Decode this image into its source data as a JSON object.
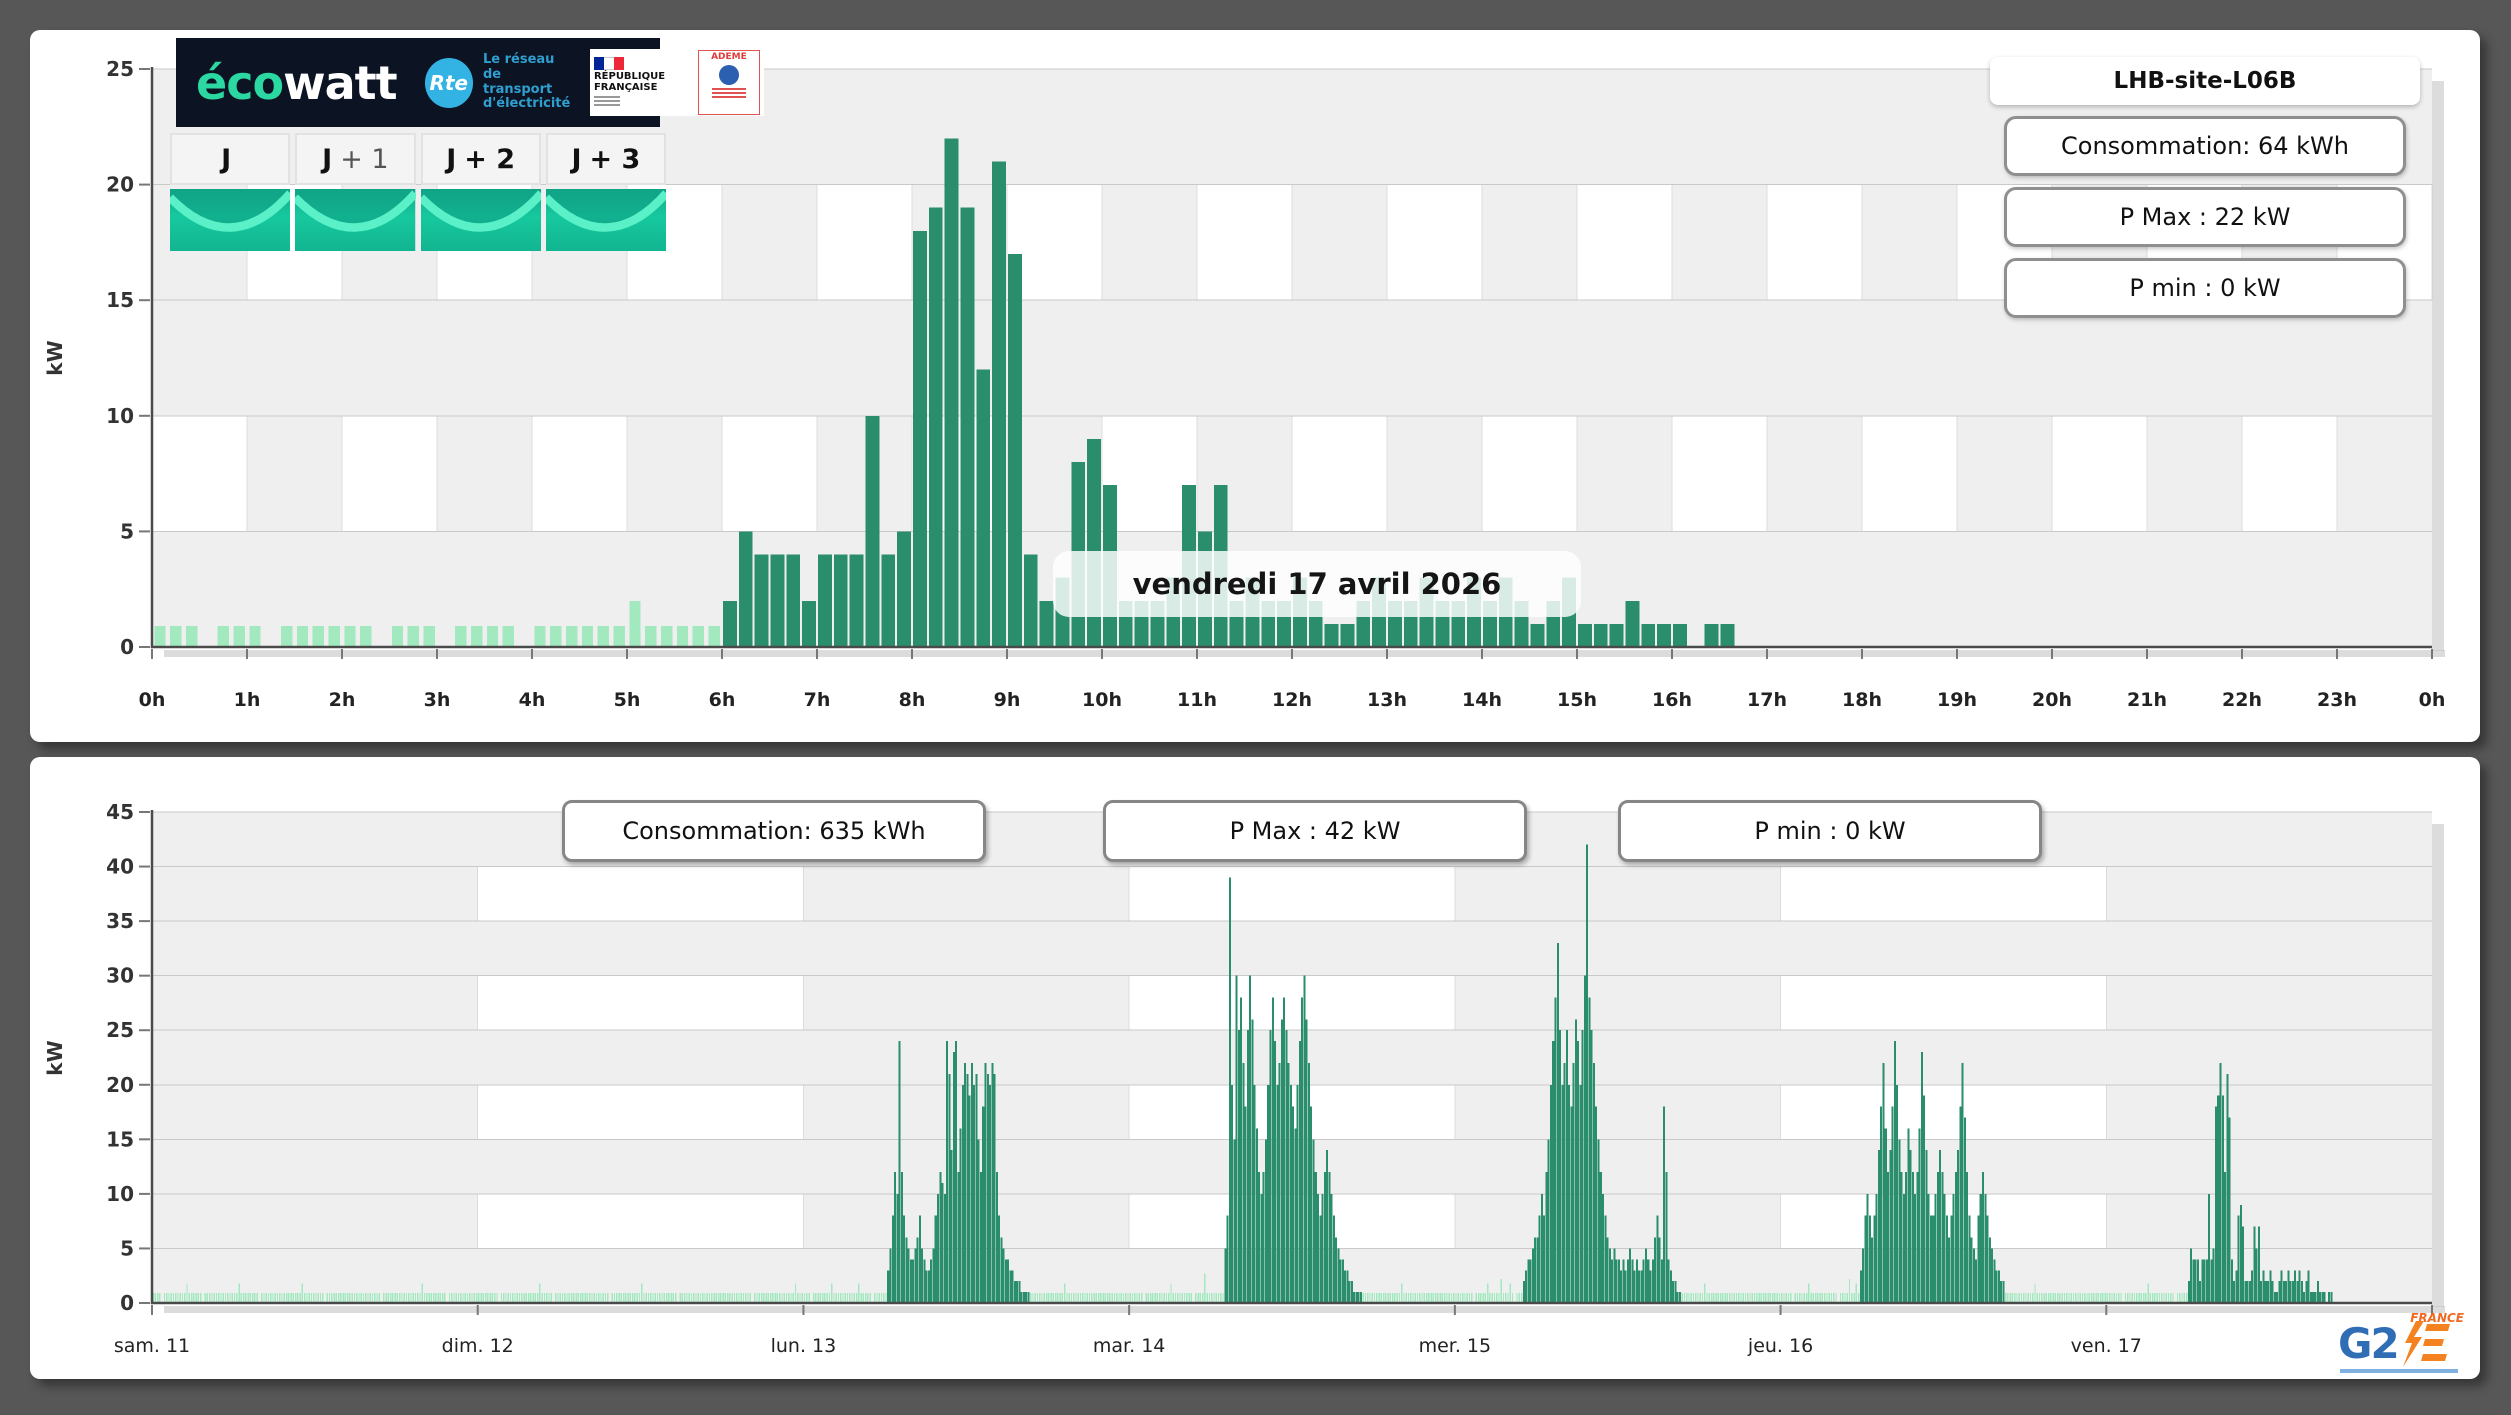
{
  "site_panel": {
    "title": "LHB-site-L06B",
    "stats": [
      "Consommation: 64 kWh",
      "P Max :  22 kW",
      "P min : 0 kW"
    ]
  },
  "bottom_stats": [
    "Consommation: 635 kWh",
    "P Max :  42 kW",
    "P min : 0 kW"
  ],
  "day_overlay": "vendredi 17 avril 2026",
  "banner": {
    "brand_eco": "éco",
    "brand_watt": "watt",
    "rte": "Rte",
    "rte_tagline_1": "Le réseau",
    "rte_tagline_2": "de transport",
    "rte_tagline_3": "d'électricité",
    "republique_1": "RÉPUBLIQUE",
    "republique_2": "FRANÇAISE",
    "ademe": "ADEME"
  },
  "tabs": [
    {
      "j": "J",
      "rest": ""
    },
    {
      "j": "J",
      "rest": "+ 1"
    },
    {
      "j": "J",
      "rest": "+ 2"
    },
    {
      "j": "J",
      "rest": "+ 3"
    }
  ],
  "footer_logo": {
    "g2": "G2",
    "e": "E",
    "france": "FRANCE"
  },
  "colors": {
    "bar_light": "#a3e9c0",
    "bar_dark": "#2a8e6c",
    "cell_gray": "#efefef",
    "cell_white": "#ffffff",
    "cell_border": "#dcdcdc",
    "grid": "#c9c9c9",
    "axis": "#4a4a4a",
    "tick": "#777777",
    "shadow": "#bfbfbf",
    "accent_teal": "#14c59d"
  },
  "chart_data": [
    {
      "type": "bar",
      "title": "vendredi 17 avril 2026",
      "xlabel": "",
      "ylabel": "kW",
      "ylim": [
        0,
        25
      ],
      "ytick_step": 5,
      "yticks": [
        "0",
        "5",
        "10",
        "15",
        "20",
        "25"
      ],
      "x_labels": [
        "0h",
        "1h",
        "2h",
        "3h",
        "4h",
        "5h",
        "6h",
        "7h",
        "8h",
        "9h",
        "10h",
        "11h",
        "12h",
        "13h",
        "14h",
        "15h",
        "16h",
        "17h",
        "18h",
        "19h",
        "20h",
        "21h",
        "22h",
        "23h",
        "0h"
      ],
      "interval_minutes": 10,
      "annotations": [
        "Consommation: 64 kWh",
        "P Max :  22 kW",
        "P min : 0 kW"
      ],
      "checker_white_cols_by_row": {
        "1": "even",
        "3": "odd"
      },
      "dark_from_index": 36,
      "dark_to_index": 99,
      "values": [
        0.9,
        0.9,
        0.9,
        0,
        0.9,
        0.9,
        0.9,
        0,
        0.9,
        0.9,
        0.9,
        0.9,
        0.9,
        0.9,
        0,
        0.9,
        0.9,
        0.9,
        0,
        0.9,
        0.9,
        0.9,
        0.9,
        0,
        0.9,
        0.9,
        0.9,
        0.9,
        0.9,
        0.9,
        2,
        0.9,
        0.9,
        0.9,
        0.9,
        0.9,
        2,
        5,
        4,
        4,
        4,
        2,
        4,
        4,
        4,
        10,
        4,
        5,
        18,
        19,
        22,
        19,
        12,
        21,
        17,
        4,
        2,
        3,
        8,
        9,
        7,
        2,
        2,
        2,
        3,
        7,
        5,
        7,
        2,
        3,
        2,
        2,
        3,
        2,
        1,
        1,
        2,
        3,
        2,
        2,
        3,
        2,
        2,
        3,
        2,
        3,
        2,
        1,
        2,
        3,
        1,
        1,
        1,
        2,
        1,
        1,
        1,
        0,
        1,
        1,
        0,
        0,
        0,
        0,
        0,
        0,
        0,
        0,
        0,
        0,
        0,
        0,
        0,
        0,
        0,
        0,
        0,
        0,
        0,
        0,
        0,
        0,
        0,
        0,
        0,
        0,
        0,
        0,
        0,
        0,
        0,
        0,
        0,
        0,
        0,
        0,
        0,
        0,
        0,
        0,
        0,
        0,
        0,
        0
      ]
    },
    {
      "type": "bar",
      "title": "",
      "xlabel": "",
      "ylabel": "kW",
      "ylim": [
        0,
        45
      ],
      "ytick_step": 5,
      "yticks": [
        "0",
        "5",
        "10",
        "15",
        "20",
        "25",
        "30",
        "35",
        "40",
        "45"
      ],
      "categories": [
        "sam. 11",
        "dim. 12",
        "lun. 13",
        "mar. 14",
        "mer. 15",
        "jeu. 16",
        "ven. 17"
      ],
      "interval_minutes": 10,
      "annotations": [
        "Consommation: 635 kWh",
        "P Max :  42 kW",
        "P min : 0 kW"
      ],
      "checker_white_cols_by_row": {
        "1": "odd",
        "3": "odd",
        "5": "odd",
        "7": "odd"
      },
      "days": [
        {
          "label": "sam. 11",
          "base": 0.9,
          "zeros": [
            4,
            22,
            47,
            76,
            101,
            130
          ],
          "spikes": {
            "15": 1.8,
            "38": 1.8,
            "66": 1.8,
            "119": 1.8
          },
          "dark_start": null,
          "dark_values": [],
          "after_dark_zero": false
        },
        {
          "label": "dim. 12",
          "base": 0.9,
          "zeros": [
            9,
            33,
            58,
            88,
            121
          ],
          "spikes": {
            "27": 1.8,
            "72": 1.8,
            "140": 1.8
          },
          "dark_start": null,
          "dark_values": [],
          "after_dark_zero": false
        },
        {
          "label": "lun. 13",
          "base": 0.9,
          "zeros": [
            3,
            30
          ],
          "spikes": {
            "12": 1.8,
            "24": 1.8,
            "115": 1.8
          },
          "dark_start": 37,
          "after_dark_zero": false,
          "dark_values": [
            3,
            5,
            8,
            12,
            10,
            24,
            12,
            8,
            6,
            5,
            4,
            4,
            5,
            6,
            8,
            5,
            4,
            3,
            3,
            4,
            5,
            8,
            10,
            12,
            11,
            10,
            24,
            21,
            14,
            23,
            24,
            12,
            16,
            20,
            22,
            21,
            19,
            22,
            20,
            21,
            15,
            12,
            18,
            22,
            21,
            20,
            22,
            21,
            12,
            8,
            6,
            5,
            4,
            4,
            3,
            3,
            2,
            2,
            2,
            1,
            1,
            1,
            1
          ]
        },
        {
          "label": "mar. 14",
          "base": 0.9,
          "zeros": [
            6,
            28
          ],
          "spikes": {
            "18": 1.8,
            "33": 2.7,
            "120": 1.8
          },
          "dark_start": 42,
          "after_dark_zero": false,
          "dark_values": [
            5,
            8,
            39,
            20,
            15,
            30,
            25,
            28,
            22,
            18,
            25,
            30,
            26,
            20,
            16,
            12,
            10,
            12,
            15,
            20,
            25,
            28,
            24,
            20,
            22,
            26,
            28,
            25,
            22,
            20,
            18,
            16,
            20,
            24,
            28,
            30,
            26,
            22,
            18,
            15,
            12,
            10,
            8,
            10,
            12,
            14,
            12,
            10,
            8,
            6,
            5,
            4,
            4,
            3,
            3,
            2,
            2,
            1,
            1,
            1,
            1
          ]
        },
        {
          "label": "mer. 15",
          "base": 0.9,
          "zeros": [
            8,
            26
          ],
          "spikes": {
            "14": 1.8,
            "20": 2.2,
            "24": 1.8,
            "110": 1.8
          },
          "dark_start": 30,
          "after_dark_zero": false,
          "dark_values": [
            2,
            3,
            4,
            4,
            5,
            6,
            6,
            8,
            10,
            8,
            12,
            15,
            20,
            24,
            28,
            33,
            25,
            20,
            22,
            25,
            20,
            18,
            22,
            26,
            24,
            20,
            25,
            30,
            42,
            28,
            25,
            22,
            18,
            15,
            12,
            10,
            8,
            6,
            5,
            4,
            5,
            4,
            4,
            3,
            4,
            3,
            4,
            5,
            4,
            3,
            4,
            3,
            3,
            4,
            5,
            4,
            3,
            4,
            6,
            8,
            6,
            4,
            18,
            12,
            4,
            3,
            2,
            2,
            1,
            1
          ]
        },
        {
          "label": "jeu. 16",
          "base": 0.9,
          "zeros": [
            5,
            25
          ],
          "spikes": {
            "12": 1.8,
            "30": 2.2,
            "33": 1.8,
            "112": 1.8
          },
          "dark_start": 35,
          "after_dark_zero": false,
          "dark_values": [
            3,
            5,
            8,
            10,
            8,
            6,
            8,
            10,
            14,
            18,
            22,
            16,
            12,
            14,
            18,
            24,
            20,
            15,
            12,
            10,
            12,
            16,
            14,
            12,
            10,
            12,
            16,
            23,
            19,
            14,
            10,
            8,
            8,
            10,
            12,
            14,
            12,
            10,
            8,
            6,
            8,
            10,
            12,
            14,
            18,
            22,
            17,
            12,
            8,
            6,
            5,
            4,
            8,
            10,
            12,
            10,
            8,
            6,
            5,
            4,
            3,
            3,
            2,
            2
          ]
        },
        {
          "label": "ven. 17",
          "base": 0.9,
          "zeros": [
            7,
            30
          ],
          "spikes": {
            "18": 1.8
          },
          "dark_start": 36,
          "after_dark_zero": true,
          "dark_values": [
            2,
            5,
            4,
            4,
            4,
            2,
            4,
            4,
            4,
            10,
            4,
            5,
            18,
            19,
            22,
            19,
            12,
            21,
            17,
            4,
            2,
            3,
            8,
            9,
            7,
            2,
            2,
            2,
            3,
            7,
            5,
            7,
            2,
            3,
            2,
            2,
            3,
            2,
            1,
            1,
            2,
            3,
            2,
            2,
            3,
            2,
            2,
            3,
            2,
            3,
            2,
            1,
            2,
            3,
            1,
            1,
            1,
            2,
            1,
            1,
            1,
            0,
            1,
            1
          ]
        }
      ]
    }
  ]
}
